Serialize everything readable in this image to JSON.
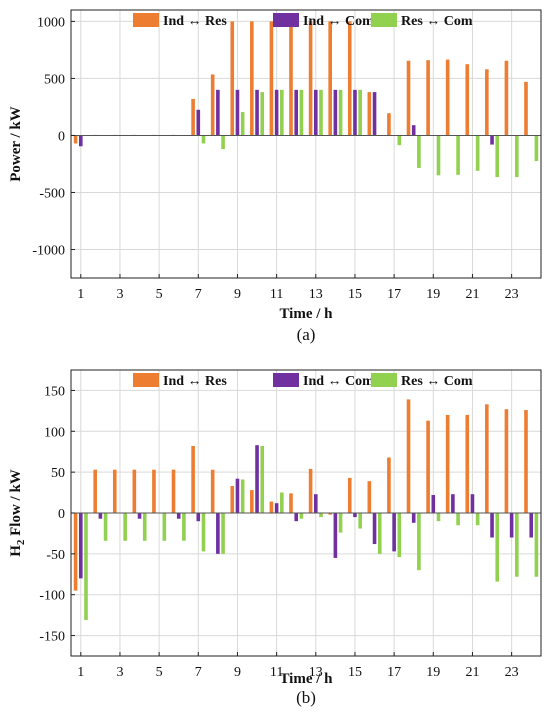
{
  "colors": {
    "ind_res": "#ED7D31",
    "ind_com": "#7030A0",
    "res_com": "#92D050",
    "grid": "#d9d9d9",
    "axis": "#222222"
  },
  "chart_data": [
    {
      "type": "bar",
      "caption": "(a)",
      "xlabel": "Time / h",
      "ylabel": "Power / kW",
      "ylim": [
        -1250,
        1100
      ],
      "yticks": [
        1000,
        500,
        0,
        -500,
        -1000
      ],
      "xticks": [
        1,
        3,
        5,
        7,
        9,
        11,
        13,
        15,
        17,
        19,
        21,
        23
      ],
      "grid": true,
      "legend": "top",
      "categories": [
        1,
        2,
        3,
        4,
        5,
        6,
        7,
        8,
        9,
        10,
        11,
        12,
        13,
        14,
        15,
        16,
        17,
        18,
        19,
        20,
        21,
        22,
        23,
        24
      ],
      "series": [
        {
          "name": "Ind ↔ Res",
          "values": [
            -70,
            5,
            5,
            5,
            5,
            5,
            320,
            535,
            1000,
            1000,
            1000,
            1000,
            1000,
            1000,
            1000,
            380,
            195,
            655,
            660,
            665,
            625,
            580,
            655,
            470
          ]
        },
        {
          "name": "Ind ↔ Com",
          "values": [
            -95,
            0,
            0,
            0,
            0,
            0,
            225,
            400,
            400,
            400,
            400,
            400,
            400,
            400,
            400,
            380,
            0,
            90,
            0,
            0,
            0,
            -80,
            0,
            0
          ]
        },
        {
          "name": "Res ↔ Com",
          "values": [
            0,
            0,
            0,
            0,
            0,
            0,
            -70,
            -120,
            205,
            380,
            400,
            400,
            400,
            400,
            400,
            0,
            -85,
            -285,
            -350,
            -345,
            -310,
            -365,
            -365,
            -225
          ]
        }
      ]
    },
    {
      "type": "bar",
      "caption": "(b)",
      "xlabel": "Time / h",
      "ylabel_main": "H",
      "ylabel_sub": "2",
      "ylabel_rest": " Flow / kW",
      "ylim": [
        -175,
        175
      ],
      "yticks": [
        150,
        100,
        50,
        0,
        -50,
        -100,
        -150
      ],
      "xticks": [
        1,
        3,
        5,
        7,
        9,
        11,
        13,
        15,
        17,
        19,
        21,
        23
      ],
      "grid": true,
      "legend": "top",
      "categories": [
        1,
        2,
        3,
        4,
        5,
        6,
        7,
        8,
        9,
        10,
        11,
        12,
        13,
        14,
        15,
        16,
        17,
        18,
        19,
        20,
        21,
        22,
        23,
        24
      ],
      "series": [
        {
          "name": "Ind ↔ Res",
          "values": [
            -95,
            53,
            53,
            53,
            53,
            53,
            82,
            53,
            33,
            28,
            14,
            24,
            54,
            -2,
            43,
            39,
            68,
            139,
            113,
            120,
            120,
            133,
            127,
            126
          ]
        },
        {
          "name": "Ind ↔ Com",
          "values": [
            -80,
            -7,
            0,
            -7,
            0,
            -7,
            -10,
            -50,
            42,
            83,
            12,
            -10,
            23,
            -55,
            -5,
            -38,
            -47,
            -12,
            22,
            23,
            23,
            -30,
            -30,
            -30
          ]
        },
        {
          "name": "Res ↔ Com",
          "values": [
            -131,
            -34,
            -34,
            -34,
            -34,
            -34,
            -47,
            -50,
            41,
            82,
            25,
            -7,
            -5,
            -24,
            -19,
            -50,
            -54,
            -70,
            -10,
            -15,
            -15,
            -84,
            -78,
            -78
          ]
        }
      ]
    }
  ]
}
